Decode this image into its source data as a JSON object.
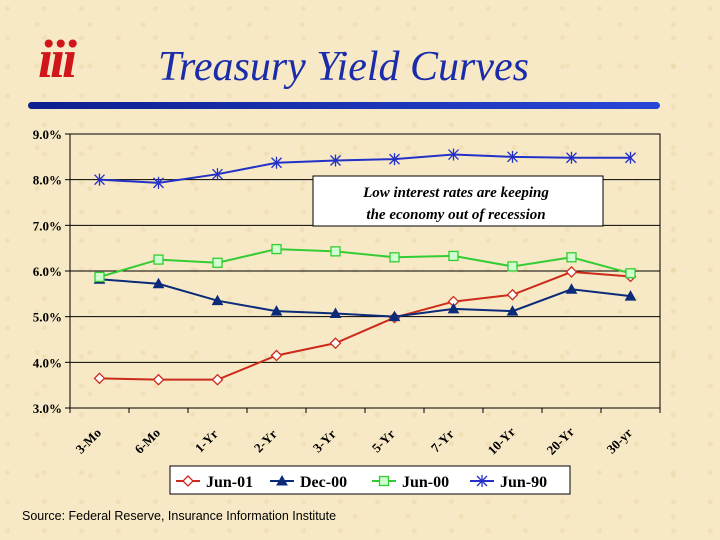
{
  "header": {
    "logo_text": "iii",
    "title": "Treasury Yield Curves"
  },
  "source": "Source: Federal Reserve, Insurance Information Institute",
  "colors": {
    "title": "#1a2ca8",
    "logo": "#d1161b",
    "Jun-01": "#cc2a1a",
    "Dec-00": "#0b2a7a",
    "Jun-00": "#33cc33",
    "Jun-90": "#2331c8"
  },
  "chart_data": {
    "type": "line",
    "categories": [
      "3-Mo",
      "6-Mo",
      "1-Yr",
      "2-Yr",
      "3-Yr",
      "5-Yr",
      "7-Yr",
      "10-Yr",
      "20-Yr",
      "30-yr"
    ],
    "yticks": [
      "3.0%",
      "4.0%",
      "5.0%",
      "6.0%",
      "7.0%",
      "8.0%",
      "9.0%"
    ],
    "ylim": [
      3.0,
      9.0
    ],
    "grid": "horizontal",
    "legend_position": "bottom",
    "annotation": [
      "Low interest rates are keeping",
      "the economy out of recession"
    ],
    "series": [
      {
        "name": "Jun-01",
        "marker": "diamond-open",
        "values": [
          3.65,
          3.62,
          3.62,
          4.15,
          4.42,
          4.98,
          5.33,
          5.48,
          5.98,
          5.88
        ]
      },
      {
        "name": "Dec-00",
        "marker": "triangle-filled",
        "values": [
          5.82,
          5.72,
          5.35,
          5.12,
          5.07,
          5.0,
          5.17,
          5.12,
          5.6,
          5.45
        ]
      },
      {
        "name": "Jun-00",
        "marker": "square-open",
        "values": [
          5.87,
          6.25,
          6.18,
          6.48,
          6.43,
          6.3,
          6.33,
          6.1,
          6.3,
          5.95
        ]
      },
      {
        "name": "Jun-90",
        "marker": "asterisk",
        "values": [
          8.0,
          7.93,
          8.12,
          8.37,
          8.42,
          8.45,
          8.55,
          8.5,
          8.48,
          8.48
        ]
      }
    ]
  }
}
